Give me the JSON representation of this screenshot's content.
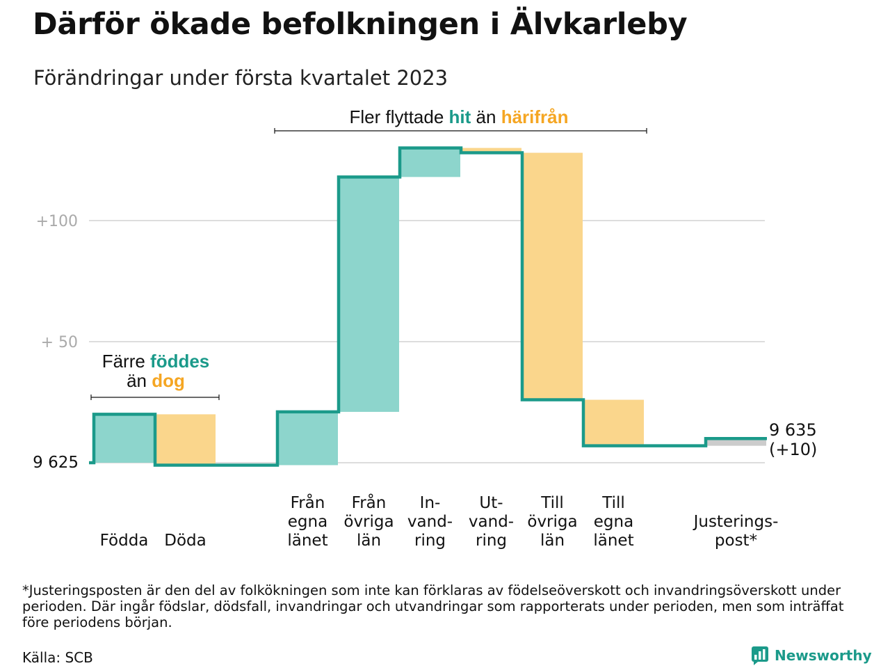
{
  "title": "Därför ökade befolkningen i Älvkarleby",
  "subtitle": "Förändringar under första kvartalet 2023",
  "chart_data": {
    "type": "waterfall",
    "start_value": 9625,
    "end_value": 9635,
    "end_label": "9 635",
    "end_change_label": "(+10)",
    "start_label": "9 625",
    "y_ticks": [
      {
        "value": 50,
        "label": "+ 50"
      },
      {
        "value": 100,
        "label": "+100"
      }
    ],
    "categories": [
      {
        "label": [
          "Födda"
        ],
        "change": 20,
        "kind": "in"
      },
      {
        "label": [
          "Döda"
        ],
        "change": -21,
        "kind": "out"
      },
      {
        "label": [
          ""
        ],
        "change": 0,
        "kind": "neutral"
      },
      {
        "label": [
          "Från",
          "egna",
          "länet"
        ],
        "change": 22,
        "kind": "in"
      },
      {
        "label": [
          "Från",
          "övriga",
          "län"
        ],
        "change": 97,
        "kind": "in"
      },
      {
        "label": [
          "In-",
          "vand-",
          "ring"
        ],
        "change": 12,
        "kind": "in"
      },
      {
        "label": [
          "Ut-",
          "vand-",
          "ring"
        ],
        "change": -2,
        "kind": "out"
      },
      {
        "label": [
          "Till",
          "övriga",
          "län"
        ],
        "change": -102,
        "kind": "out"
      },
      {
        "label": [
          "Till",
          "egna",
          "länet"
        ],
        "change": -19,
        "kind": "out"
      },
      {
        "label": [
          ""
        ],
        "change": 0,
        "kind": "neutral"
      },
      {
        "label": [
          "Justerings-",
          "post*"
        ],
        "change": 3,
        "kind": "adjust"
      }
    ],
    "annotations": [
      {
        "parts": [
          {
            "text": "Fler flyttade ",
            "color": "#111111"
          },
          {
            "text": "hit",
            "color": "#1b9a8a",
            "bold": true
          },
          {
            "text": " än ",
            "color": "#111111"
          },
          {
            "text": "härifrån",
            "color": "#f5a623",
            "bold": true
          }
        ]
      },
      {
        "lines": [
          [
            {
              "text": "Färre ",
              "color": "#111111"
            },
            {
              "text": "föddes",
              "color": "#1b9a8a",
              "bold": true
            }
          ],
          [
            {
              "text": "än ",
              "color": "#111111"
            },
            {
              "text": "dog",
              "color": "#f5a623",
              "bold": true
            }
          ]
        ]
      }
    ],
    "colors": {
      "line": "#1b9a8a",
      "in": "#8dd5cc",
      "out": "#fad68c",
      "adjust": "#cccccc",
      "grid": "#dddddd",
      "tick_text": "#aaaaaa"
    }
  },
  "footnote": "*Justeringsposten är den del av folkökningen som inte kan förklaras av födelseöverskott och invandringsöverskott under perioden. Där ingår födslar, dödsfall, invandringar och utvandringar som rapporterats under perioden, men som inträffat före periodens början.",
  "source": "Källa: SCB",
  "brand": {
    "name": "Newsworthy",
    "icon": "newsworthy-logo-icon"
  }
}
